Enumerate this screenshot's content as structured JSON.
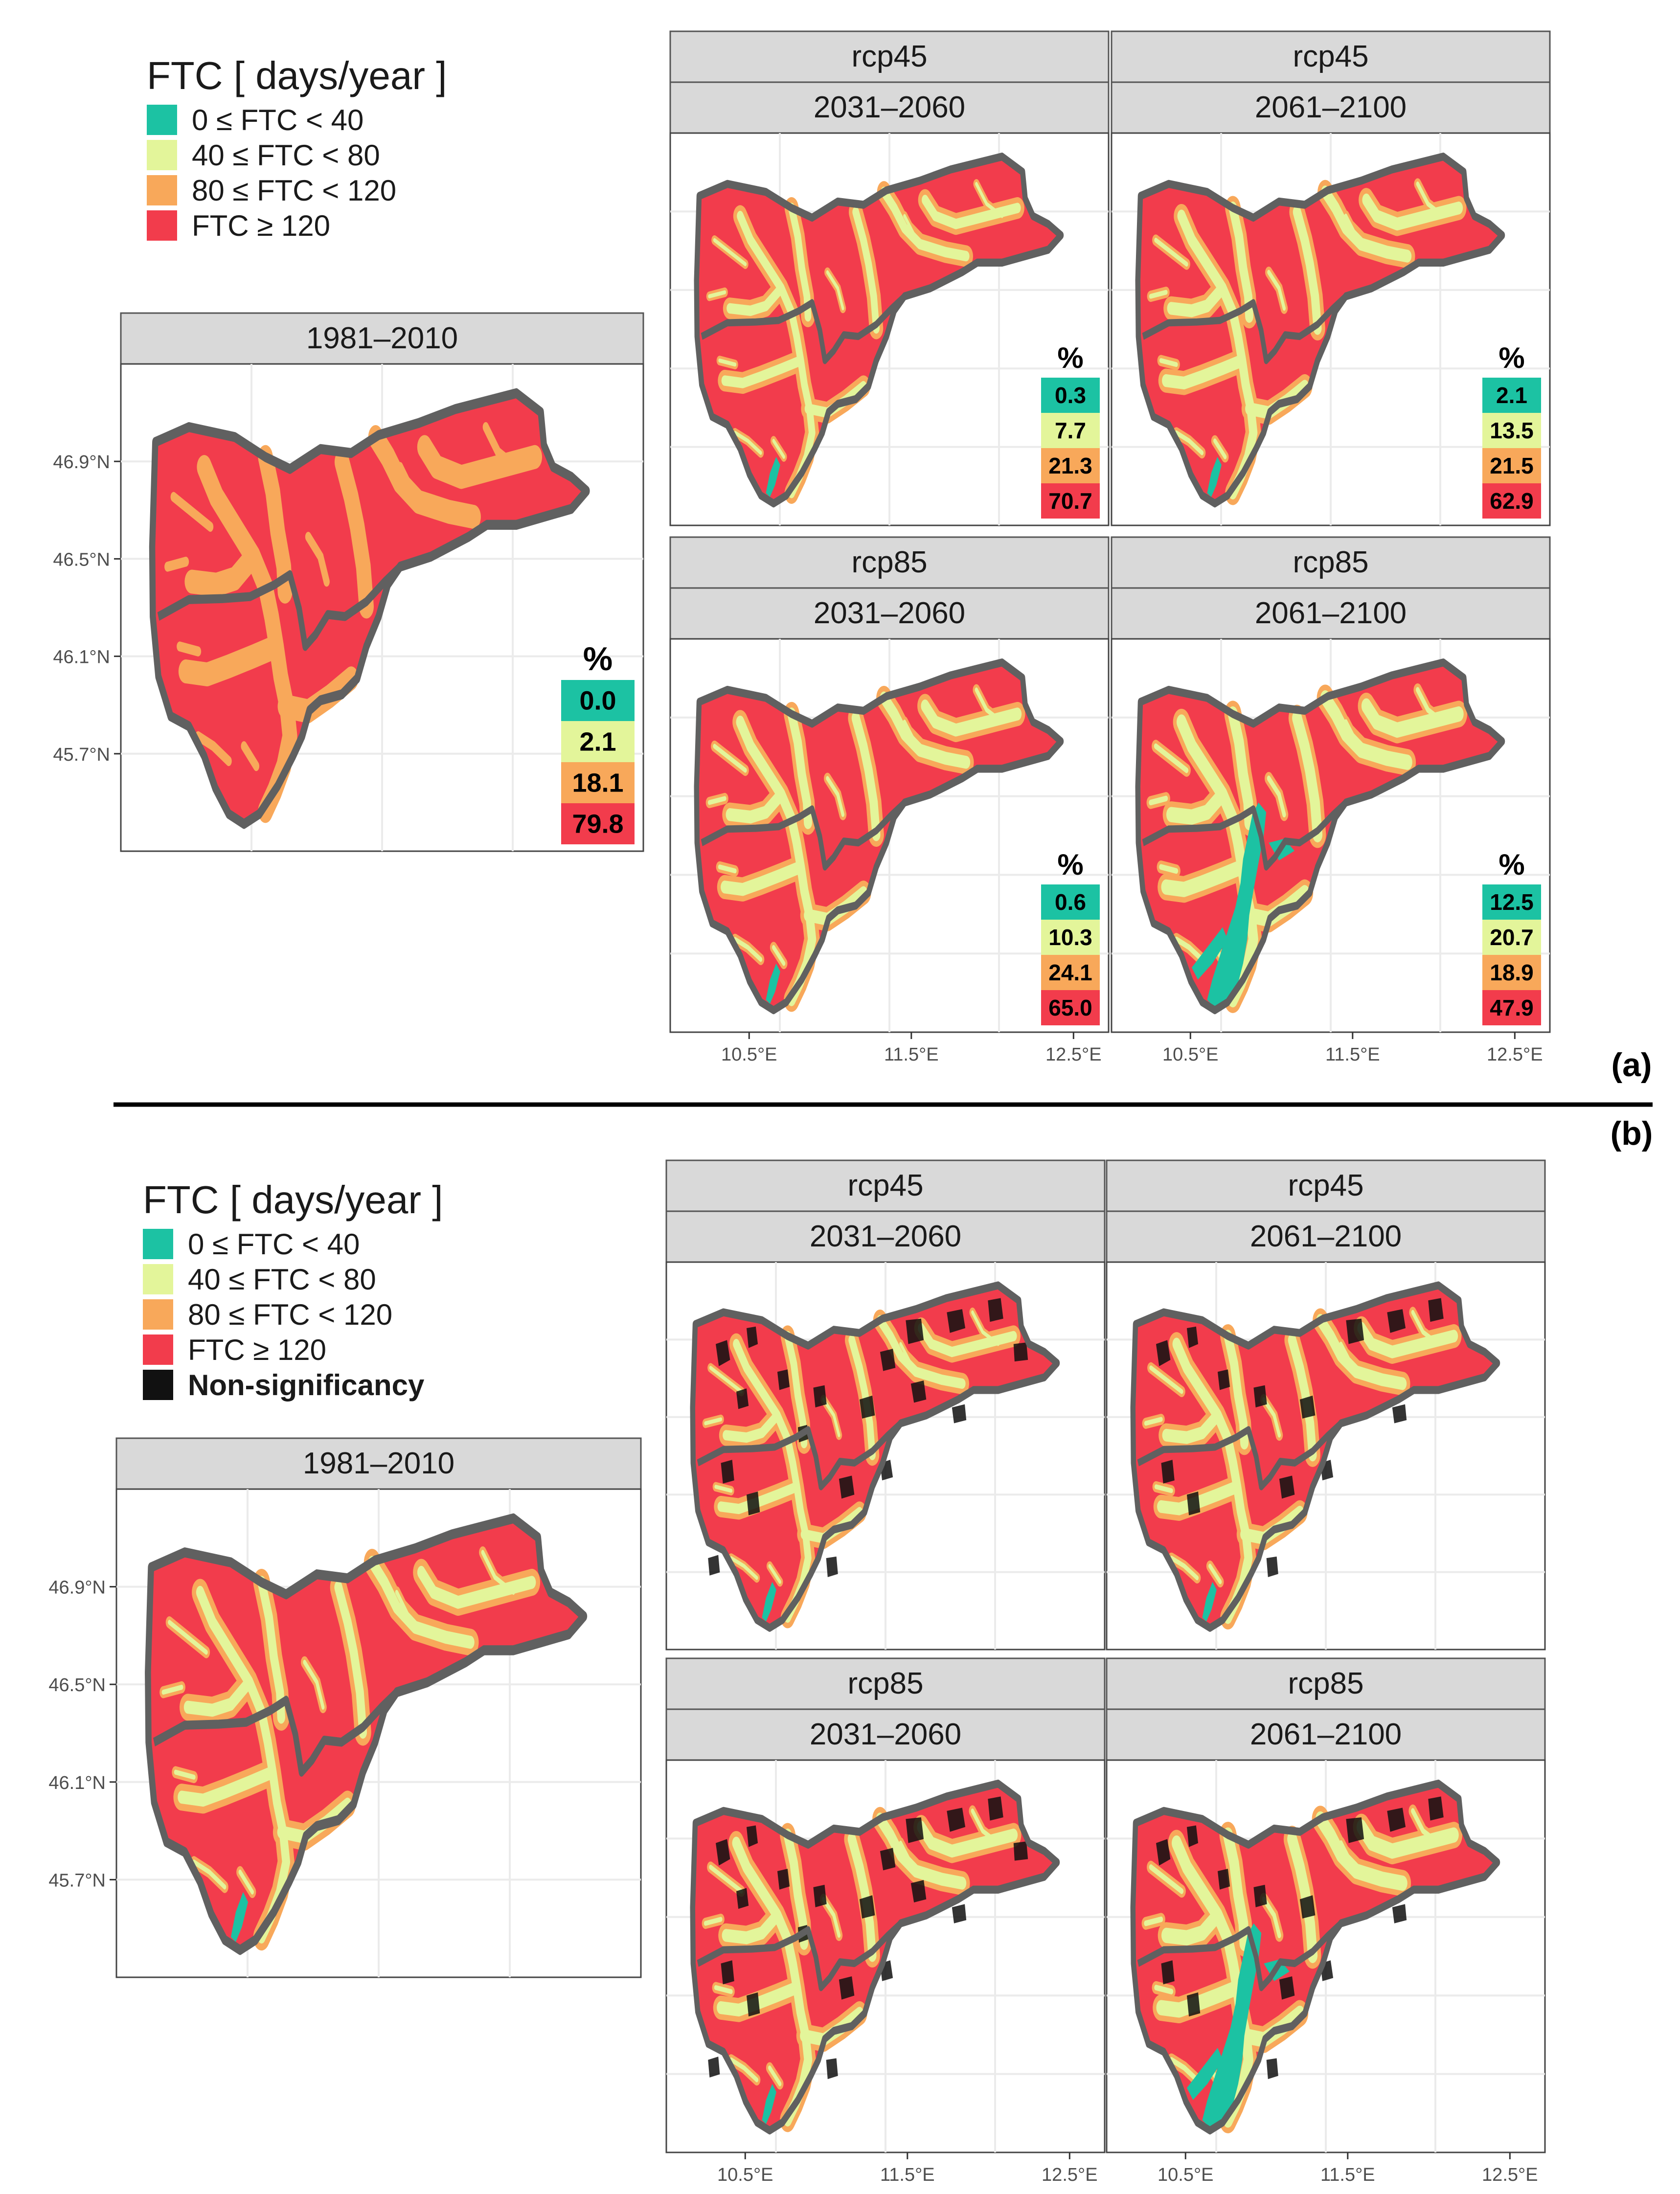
{
  "figure": {
    "part_a_label": "(a)",
    "part_b_label": "(b)"
  },
  "legend": {
    "title": "FTC [ days/year ]",
    "classes": [
      {
        "label": "0 ≤ FTC < 40",
        "color": "#1cc2a3"
      },
      {
        "label": "40 ≤ FTC < 80",
        "color": "#e3f59a"
      },
      {
        "label": "80 ≤ FTC < 120",
        "color": "#f8a85a"
      },
      {
        "label": "FTC ≥ 120",
        "color": "#f23c4c"
      }
    ],
    "nonsig": {
      "label": "Non-significancy",
      "color": "#111111"
    }
  },
  "axes": {
    "lat_ticks": [
      "46.9°N",
      "46.5°N",
      "46.1°N",
      "45.7°N"
    ],
    "lon_ticks": [
      "10.5°E",
      "11.5°E",
      "12.5°E"
    ]
  },
  "colors": {
    "strip_bg": "#d9d9d9",
    "border": "#606060",
    "grid": "#ebebeb"
  },
  "panels_a": [
    {
      "key": "hist",
      "header": [
        "1981–2010"
      ],
      "percent_title": "%",
      "values": [
        "0.0",
        "2.1",
        "18.1",
        "79.8"
      ]
    },
    {
      "key": "r45a",
      "header": [
        "rcp45",
        "2031–2060"
      ],
      "percent_title": "%",
      "values": [
        "0.3",
        "7.7",
        "21.3",
        "70.7"
      ]
    },
    {
      "key": "r45b",
      "header": [
        "rcp45",
        "2061–2100"
      ],
      "percent_title": "%",
      "values": [
        "2.1",
        "13.5",
        "21.5",
        "62.9"
      ]
    },
    {
      "key": "r85a",
      "header": [
        "rcp85",
        "2031–2060"
      ],
      "percent_title": "%",
      "values": [
        "0.6",
        "10.3",
        "24.1",
        "65.0"
      ]
    },
    {
      "key": "r85b",
      "header": [
        "rcp85",
        "2061–2100"
      ],
      "percent_title": "%",
      "values": [
        "12.5",
        "20.7",
        "18.9",
        "47.9"
      ]
    }
  ],
  "panels_b": [
    {
      "key": "hist",
      "header": [
        "1981–2010"
      ]
    },
    {
      "key": "r45a",
      "header": [
        "rcp45",
        "2031–2060"
      ]
    },
    {
      "key": "r45b",
      "header": [
        "rcp45",
        "2061–2100"
      ]
    },
    {
      "key": "r85a",
      "header": [
        "rcp85",
        "2031–2060"
      ]
    },
    {
      "key": "r85b",
      "header": [
        "rcp85",
        "2061–2100"
      ]
    }
  ]
}
